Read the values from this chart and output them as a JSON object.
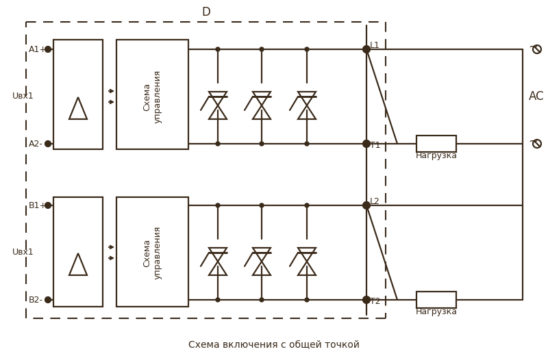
{
  "caption": "Схема включения с общей точкой",
  "label_D": "D",
  "label_AC": "AC",
  "label_L1": "L1",
  "label_L2": "L2",
  "label_T1": "T1",
  "label_T2": "T2",
  "label_A1": "A1+",
  "label_A2": "A2-",
  "label_B1": "B1+",
  "label_B2": "B2-",
  "label_Uvx1_top": "Uвх1",
  "label_Uvx1_bot": "Uвх1",
  "label_nagruzka1": "Нагрузка",
  "label_nagruzka2": "Нагрузка",
  "line_color": "#3a2a1a",
  "bg_color": "#ffffff",
  "fig_width": 8.0,
  "fig_height": 5.23
}
